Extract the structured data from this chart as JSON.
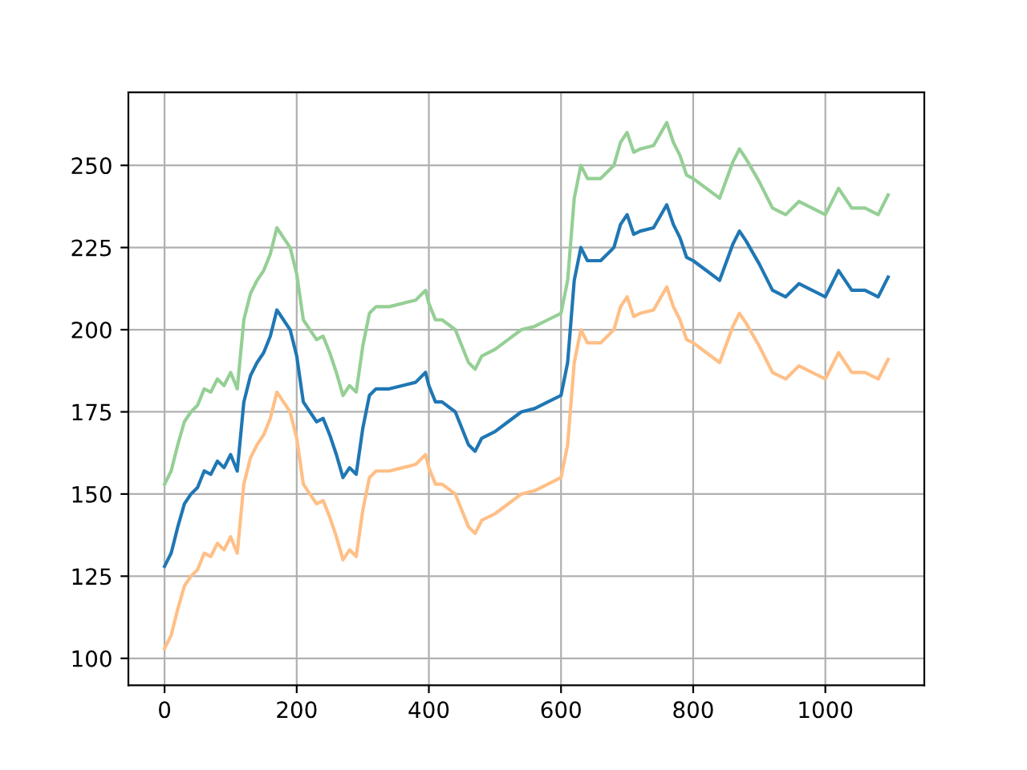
{
  "chart_data": {
    "type": "line",
    "x": [
      0,
      10,
      20,
      30,
      40,
      50,
      60,
      70,
      80,
      90,
      100,
      110,
      120,
      130,
      140,
      150,
      160,
      170,
      180,
      190,
      200,
      210,
      220,
      230,
      240,
      250,
      260,
      270,
      280,
      290,
      300,
      310,
      320,
      340,
      360,
      380,
      395,
      400,
      410,
      420,
      440,
      460,
      470,
      480,
      500,
      520,
      540,
      560,
      580,
      600,
      610,
      620,
      630,
      640,
      660,
      680,
      690,
      700,
      710,
      720,
      740,
      760,
      770,
      780,
      790,
      800,
      820,
      840,
      860,
      870,
      880,
      900,
      920,
      940,
      960,
      980,
      1000,
      1020,
      1040,
      1060,
      1080,
      1095
    ],
    "series": [
      {
        "color": "#95cf95",
        "values": [
          153,
          157,
          165,
          172,
          175,
          177,
          182,
          181,
          185,
          183,
          187,
          182,
          203,
          211,
          215,
          218,
          223,
          231,
          228,
          225,
          217,
          203,
          200,
          197,
          198,
          193,
          187,
          180,
          183,
          181,
          195,
          205,
          207,
          207,
          208,
          209,
          212,
          208,
          203,
          203,
          200,
          190,
          188,
          192,
          194,
          197,
          200,
          201,
          203,
          205,
          215,
          240,
          250,
          246,
          246,
          250,
          257,
          260,
          254,
          255,
          256,
          263,
          257,
          253,
          247,
          246,
          243,
          240,
          251,
          255,
          252,
          245,
          237,
          235,
          239,
          237,
          235,
          243,
          237,
          237,
          235,
          241
        ]
      },
      {
        "color": "#ffbf86",
        "values": [
          103,
          107,
          115,
          122,
          125,
          127,
          132,
          131,
          135,
          133,
          137,
          132,
          153,
          161,
          165,
          168,
          173,
          181,
          178,
          175,
          167,
          153,
          150,
          147,
          148,
          143,
          137,
          130,
          133,
          131,
          145,
          155,
          157,
          157,
          158,
          159,
          162,
          158,
          153,
          153,
          150,
          140,
          138,
          142,
          144,
          147,
          150,
          151,
          153,
          155,
          165,
          190,
          200,
          196,
          196,
          200,
          207,
          210,
          204,
          205,
          206,
          213,
          207,
          203,
          197,
          196,
          193,
          190,
          201,
          205,
          202,
          195,
          187,
          185,
          189,
          187,
          185,
          193,
          187,
          187,
          185,
          191
        ]
      },
      {
        "color": "#1f77b4",
        "values": [
          128,
          132,
          140,
          147,
          150,
          152,
          157,
          156,
          160,
          158,
          162,
          157,
          178,
          186,
          190,
          193,
          198,
          206,
          203,
          200,
          192,
          178,
          175,
          172,
          173,
          168,
          162,
          155,
          158,
          156,
          170,
          180,
          182,
          182,
          183,
          184,
          187,
          183,
          178,
          178,
          175,
          165,
          163,
          167,
          169,
          172,
          175,
          176,
          178,
          180,
          190,
          215,
          225,
          221,
          221,
          225,
          232,
          235,
          229,
          230,
          231,
          238,
          232,
          228,
          222,
          221,
          218,
          215,
          226,
          230,
          227,
          220,
          212,
          210,
          214,
          212,
          210,
          218,
          212,
          212,
          210,
          216
        ]
      }
    ],
    "xlim": [
      -54.75,
      1149.75
    ],
    "xticks": [
      0,
      200,
      400,
      600,
      800,
      1000
    ],
    "ylim": [
      91.8,
      272.2
    ],
    "yticks": [
      100,
      125,
      150,
      175,
      200,
      225,
      250
    ],
    "grid": true
  }
}
